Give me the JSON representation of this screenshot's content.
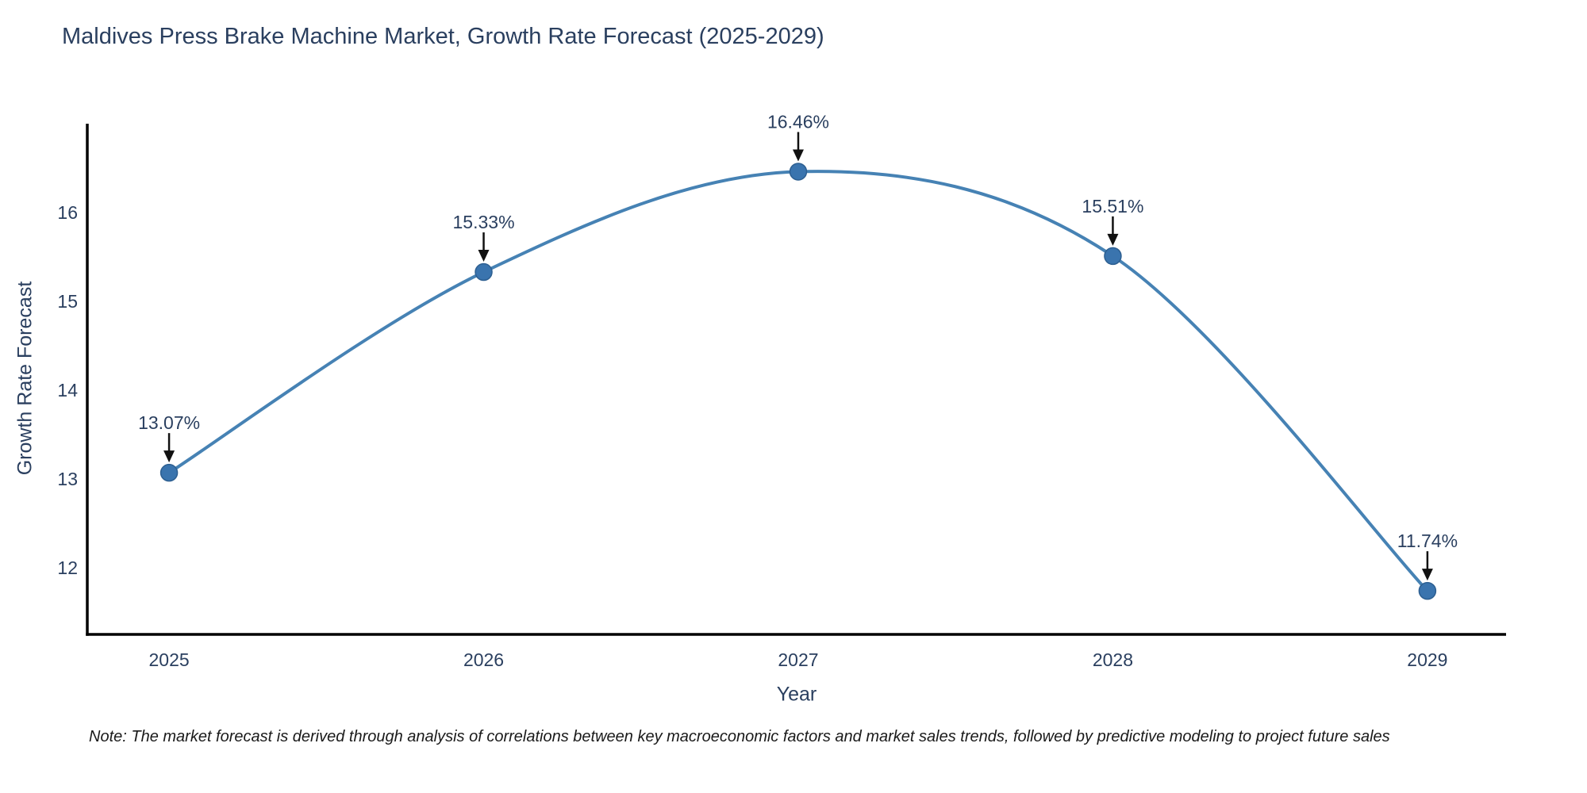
{
  "title": "Maldives Press Brake Machine Market, Growth Rate Forecast (2025-2029)",
  "note": "Note: The market forecast is derived through analysis of correlations between key macroeconomic factors and market sales trends, followed by predictive modeling to project future sales",
  "colors": {
    "line": "#4682b4",
    "marker_fill": "#3a74ae",
    "marker_edge": "#2d5f91",
    "axis": "#000000",
    "tick_text": "#2a3f5f",
    "annotation_text": "#2a3f5f",
    "arrow": "#111111"
  },
  "chart_data": {
    "type": "line",
    "line_shape": "spline",
    "x": [
      2025,
      2026,
      2027,
      2028,
      2029
    ],
    "values": [
      13.07,
      15.33,
      16.46,
      15.51,
      11.74
    ],
    "point_labels": [
      "13.07%",
      "15.33%",
      "16.46%",
      "15.51%",
      "11.74%"
    ],
    "title": "Maldives Press Brake Machine Market, Growth Rate Forecast (2025-2029)",
    "xlabel": "Year",
    "ylabel": "Growth Rate Forecast",
    "xticks": [
      2025,
      2026,
      2027,
      2028,
      2029
    ],
    "yticks": [
      12,
      13,
      14,
      15,
      16
    ],
    "xlim": [
      2024.74,
      2029.25
    ],
    "ylim": [
      11.25,
      17.0
    ],
    "grid": false,
    "legend": false
  }
}
